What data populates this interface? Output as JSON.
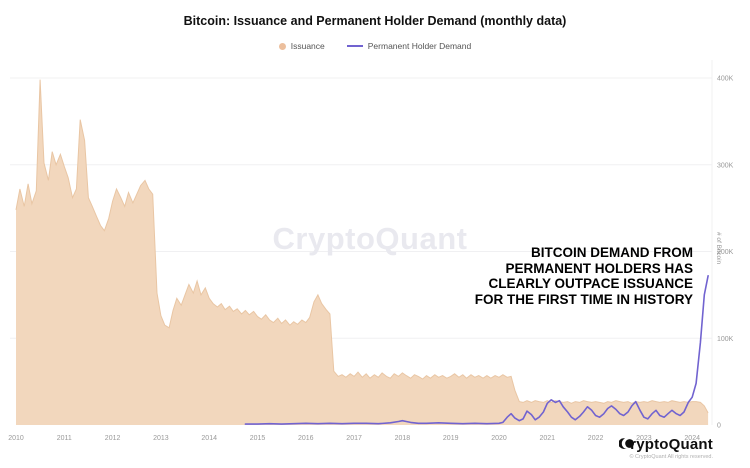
{
  "ui": {
    "title": "Bitcoin: Issuance and Permanent Holder Demand (monthly data)",
    "watermark": "CryptoQuant",
    "annotation": {
      "lines": [
        "BITCOIN DEMAND FROM",
        "PERMANENT HOLDERS HAS",
        "CLEARLY OUTPACE ISSUANCE",
        "FOR THE FIRST TIME IN HISTORY"
      ]
    },
    "footer": {
      "brand": "CryptoQuant",
      "copyright": "© CryptoQuant All rights reserved."
    },
    "colors": {
      "issuance_fill": "#f2d7bd",
      "issuance_edge": "#e9c6a4",
      "phd_line": "#7163d0",
      "grid": "#f0f0f2",
      "tick_text": "#999999"
    }
  },
  "chart_data": {
    "type": "area",
    "title": "Bitcoin: Issuance and Permanent Holder Demand (monthly data)",
    "xlabel": "",
    "ylabel": "# of Bitcoin",
    "legend_position": "top",
    "grid": true,
    "x_axis": {
      "ticks": [
        "2010",
        "2011",
        "2012",
        "2013",
        "2014",
        "2015",
        "2016",
        "2017",
        "2018",
        "2019",
        "2020",
        "2021",
        "2022",
        "2023",
        "2024"
      ],
      "range": [
        2010,
        2024.55
      ]
    },
    "y_axis": {
      "ticks": [
        {
          "v": 0,
          "label": "0"
        },
        {
          "v": 100000,
          "label": "100K"
        },
        {
          "v": 200000,
          "label": "200K"
        },
        {
          "v": 300000,
          "label": "300K"
        },
        {
          "v": 400000,
          "label": "400K"
        }
      ],
      "range": [
        0,
        425000
      ]
    },
    "series": [
      {
        "name": "Issuance",
        "type": "area",
        "fill": "#f2d7bd",
        "stroke": "#e9c6a4",
        "points": [
          [
            2010.0,
            248000
          ],
          [
            2010.08,
            272000
          ],
          [
            2010.17,
            252000
          ],
          [
            2010.25,
            278000
          ],
          [
            2010.33,
            255000
          ],
          [
            2010.42,
            270000
          ],
          [
            2010.5,
            398000
          ],
          [
            2010.58,
            302000
          ],
          [
            2010.67,
            282000
          ],
          [
            2010.75,
            315000
          ],
          [
            2010.83,
            300000
          ],
          [
            2010.92,
            312000
          ],
          [
            2011.0,
            298000
          ],
          [
            2011.08,
            285000
          ],
          [
            2011.17,
            262000
          ],
          [
            2011.25,
            272000
          ],
          [
            2011.33,
            352000
          ],
          [
            2011.42,
            328000
          ],
          [
            2011.5,
            262000
          ],
          [
            2011.58,
            252000
          ],
          [
            2011.67,
            240000
          ],
          [
            2011.75,
            230000
          ],
          [
            2011.83,
            224000
          ],
          [
            2011.92,
            238000
          ],
          [
            2012.0,
            258000
          ],
          [
            2012.08,
            272000
          ],
          [
            2012.17,
            262000
          ],
          [
            2012.25,
            252000
          ],
          [
            2012.33,
            268000
          ],
          [
            2012.42,
            256000
          ],
          [
            2012.5,
            266000
          ],
          [
            2012.58,
            276000
          ],
          [
            2012.67,
            282000
          ],
          [
            2012.75,
            272000
          ],
          [
            2012.83,
            266000
          ],
          [
            2012.92,
            152000
          ],
          [
            2013.0,
            126000
          ],
          [
            2013.08,
            115000
          ],
          [
            2013.17,
            112000
          ],
          [
            2013.25,
            132000
          ],
          [
            2013.33,
            146000
          ],
          [
            2013.42,
            138000
          ],
          [
            2013.5,
            150000
          ],
          [
            2013.58,
            162000
          ],
          [
            2013.67,
            152000
          ],
          [
            2013.75,
            166000
          ],
          [
            2013.83,
            150000
          ],
          [
            2013.92,
            158000
          ],
          [
            2014.0,
            146000
          ],
          [
            2014.08,
            140000
          ],
          [
            2014.17,
            136000
          ],
          [
            2014.25,
            140000
          ],
          [
            2014.33,
            133000
          ],
          [
            2014.42,
            137000
          ],
          [
            2014.5,
            131000
          ],
          [
            2014.58,
            134000
          ],
          [
            2014.67,
            128000
          ],
          [
            2014.75,
            132000
          ],
          [
            2014.83,
            127000
          ],
          [
            2014.92,
            131000
          ],
          [
            2015.0,
            125000
          ],
          [
            2015.08,
            122000
          ],
          [
            2015.17,
            127000
          ],
          [
            2015.25,
            121000
          ],
          [
            2015.33,
            118000
          ],
          [
            2015.42,
            123000
          ],
          [
            2015.5,
            117000
          ],
          [
            2015.58,
            121000
          ],
          [
            2015.67,
            115000
          ],
          [
            2015.75,
            119000
          ],
          [
            2015.83,
            116000
          ],
          [
            2015.92,
            121000
          ],
          [
            2016.0,
            118000
          ],
          [
            2016.08,
            124000
          ],
          [
            2016.17,
            142000
          ],
          [
            2016.25,
            150000
          ],
          [
            2016.33,
            140000
          ],
          [
            2016.42,
            133000
          ],
          [
            2016.5,
            128000
          ],
          [
            2016.58,
            62000
          ],
          [
            2016.67,
            56000
          ],
          [
            2016.75,
            58000
          ],
          [
            2016.83,
            55000
          ],
          [
            2016.92,
            59000
          ],
          [
            2017.0,
            56000
          ],
          [
            2017.08,
            61000
          ],
          [
            2017.17,
            55000
          ],
          [
            2017.25,
            59000
          ],
          [
            2017.33,
            54000
          ],
          [
            2017.42,
            58000
          ],
          [
            2017.5,
            55000
          ],
          [
            2017.58,
            60000
          ],
          [
            2017.67,
            56000
          ],
          [
            2017.75,
            54000
          ],
          [
            2017.83,
            59000
          ],
          [
            2017.92,
            56000
          ],
          [
            2018.0,
            60000
          ],
          [
            2018.08,
            57000
          ],
          [
            2018.17,
            54000
          ],
          [
            2018.25,
            58000
          ],
          [
            2018.33,
            56000
          ],
          [
            2018.42,
            53000
          ],
          [
            2018.5,
            57000
          ],
          [
            2018.58,
            54000
          ],
          [
            2018.67,
            58000
          ],
          [
            2018.75,
            55000
          ],
          [
            2018.83,
            57000
          ],
          [
            2018.92,
            54000
          ],
          [
            2019.0,
            56000
          ],
          [
            2019.08,
            59000
          ],
          [
            2019.17,
            55000
          ],
          [
            2019.25,
            58000
          ],
          [
            2019.33,
            54000
          ],
          [
            2019.42,
            58000
          ],
          [
            2019.5,
            55000
          ],
          [
            2019.58,
            57000
          ],
          [
            2019.67,
            54000
          ],
          [
            2019.75,
            57000
          ],
          [
            2019.83,
            54000
          ],
          [
            2019.92,
            57000
          ],
          [
            2020.0,
            55000
          ],
          [
            2020.08,
            58000
          ],
          [
            2020.17,
            55000
          ],
          [
            2020.25,
            56000
          ],
          [
            2020.33,
            40000
          ],
          [
            2020.42,
            27000
          ],
          [
            2020.5,
            26000
          ],
          [
            2020.58,
            28000
          ],
          [
            2020.67,
            26000
          ],
          [
            2020.75,
            28000
          ],
          [
            2020.83,
            27000
          ],
          [
            2020.92,
            26000
          ],
          [
            2021.0,
            28000
          ],
          [
            2021.08,
            26000
          ],
          [
            2021.17,
            28000
          ],
          [
            2021.25,
            27000
          ],
          [
            2021.33,
            26000
          ],
          [
            2021.42,
            27000
          ],
          [
            2021.5,
            25000
          ],
          [
            2021.58,
            27000
          ],
          [
            2021.67,
            26000
          ],
          [
            2021.75,
            28000
          ],
          [
            2021.83,
            27000
          ],
          [
            2021.92,
            26000
          ],
          [
            2022.0,
            27000
          ],
          [
            2022.08,
            26000
          ],
          [
            2022.17,
            25000
          ],
          [
            2022.25,
            27000
          ],
          [
            2022.33,
            26000
          ],
          [
            2022.42,
            28000
          ],
          [
            2022.5,
            27000
          ],
          [
            2022.58,
            26000
          ],
          [
            2022.67,
            27000
          ],
          [
            2022.75,
            25000
          ],
          [
            2022.83,
            27000
          ],
          [
            2022.92,
            26000
          ],
          [
            2023.0,
            27000
          ],
          [
            2023.08,
            26000
          ],
          [
            2023.17,
            28000
          ],
          [
            2023.25,
            27000
          ],
          [
            2023.33,
            26000
          ],
          [
            2023.42,
            27000
          ],
          [
            2023.5,
            26000
          ],
          [
            2023.58,
            28000
          ],
          [
            2023.67,
            27000
          ],
          [
            2023.75,
            26000
          ],
          [
            2023.83,
            27000
          ],
          [
            2023.92,
            26000
          ],
          [
            2024.0,
            27000
          ],
          [
            2024.08,
            27000
          ],
          [
            2024.17,
            26000
          ],
          [
            2024.25,
            22000
          ],
          [
            2024.33,
            14000
          ]
        ]
      },
      {
        "name": "Permanent Holder Demand",
        "type": "line",
        "color": "#7163d0",
        "points": [
          [
            2014.75,
            1000
          ],
          [
            2015.0,
            1000
          ],
          [
            2015.25,
            1500
          ],
          [
            2015.5,
            1000
          ],
          [
            2015.75,
            1500
          ],
          [
            2016.0,
            2000
          ],
          [
            2016.25,
            1500
          ],
          [
            2016.5,
            2000
          ],
          [
            2016.75,
            1500
          ],
          [
            2017.0,
            2000
          ],
          [
            2017.25,
            2000
          ],
          [
            2017.5,
            1500
          ],
          [
            2017.75,
            2500
          ],
          [
            2017.92,
            4000
          ],
          [
            2018.0,
            5000
          ],
          [
            2018.08,
            4000
          ],
          [
            2018.17,
            3000
          ],
          [
            2018.33,
            2000
          ],
          [
            2018.5,
            2000
          ],
          [
            2018.75,
            2500
          ],
          [
            2019.0,
            2000
          ],
          [
            2019.25,
            1500
          ],
          [
            2019.5,
            2000
          ],
          [
            2019.75,
            1500
          ],
          [
            2020.0,
            2000
          ],
          [
            2020.08,
            3000
          ],
          [
            2020.17,
            9000
          ],
          [
            2020.25,
            13000
          ],
          [
            2020.33,
            8000
          ],
          [
            2020.42,
            5000
          ],
          [
            2020.5,
            7000
          ],
          [
            2020.58,
            16000
          ],
          [
            2020.67,
            12000
          ],
          [
            2020.75,
            6000
          ],
          [
            2020.83,
            9000
          ],
          [
            2020.92,
            15000
          ],
          [
            2021.0,
            25000
          ],
          [
            2021.08,
            29000
          ],
          [
            2021.17,
            26000
          ],
          [
            2021.25,
            28000
          ],
          [
            2021.33,
            21000
          ],
          [
            2021.42,
            15000
          ],
          [
            2021.5,
            9000
          ],
          [
            2021.58,
            6000
          ],
          [
            2021.67,
            10000
          ],
          [
            2021.75,
            15000
          ],
          [
            2021.83,
            21000
          ],
          [
            2021.92,
            17000
          ],
          [
            2022.0,
            11000
          ],
          [
            2022.08,
            9000
          ],
          [
            2022.17,
            13000
          ],
          [
            2022.25,
            19000
          ],
          [
            2022.33,
            22000
          ],
          [
            2022.42,
            18000
          ],
          [
            2022.5,
            13000
          ],
          [
            2022.58,
            11000
          ],
          [
            2022.67,
            15000
          ],
          [
            2022.75,
            22000
          ],
          [
            2022.83,
            27000
          ],
          [
            2022.92,
            17000
          ],
          [
            2023.0,
            9000
          ],
          [
            2023.08,
            7000
          ],
          [
            2023.17,
            13000
          ],
          [
            2023.25,
            17000
          ],
          [
            2023.33,
            11000
          ],
          [
            2023.42,
            9000
          ],
          [
            2023.5,
            13000
          ],
          [
            2023.58,
            17000
          ],
          [
            2023.67,
            13000
          ],
          [
            2023.75,
            11000
          ],
          [
            2023.83,
            15000
          ],
          [
            2023.92,
            26000
          ],
          [
            2024.0,
            32000
          ],
          [
            2024.08,
            48000
          ],
          [
            2024.17,
            95000
          ],
          [
            2024.25,
            150000
          ],
          [
            2024.33,
            172000
          ]
        ]
      }
    ]
  }
}
